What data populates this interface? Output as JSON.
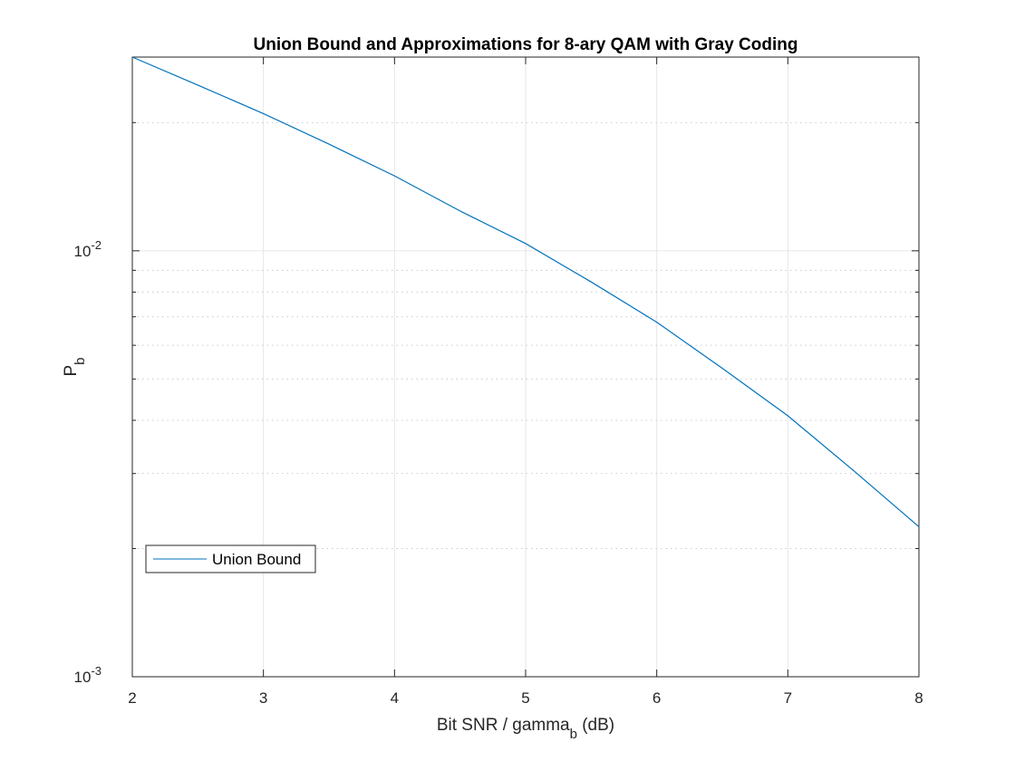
{
  "chart_data": {
    "type": "line",
    "title": "Union Bound and Approximations for 8-ary QAM with Gray Coding",
    "xlabel": "Bit SNR / gamma",
    "xlabel_subscript": "b",
    "xlabel_suffix": " (dB)",
    "ylabel": "P",
    "ylabel_subscript": "b",
    "xlim": [
      2,
      8
    ],
    "ylim": [
      0.001,
      0.0285
    ],
    "yscale": "log",
    "grid": true,
    "legend_location": "bottom-left",
    "x_ticks": [
      "2",
      "3",
      "4",
      "5",
      "6",
      "7",
      "8"
    ],
    "y_ticks": [
      {
        "base": "10",
        "exp": "-3",
        "value": 0.001
      },
      {
        "base": "10",
        "exp": "-2",
        "value": 0.01
      }
    ],
    "series": [
      {
        "name": "Union Bound",
        "color": "#0072BD",
        "x": [
          2.0,
          2.5,
          3.0,
          3.5,
          4.0,
          4.5,
          5.0,
          5.5,
          6.0,
          6.5,
          7.0,
          7.5,
          8.0
        ],
        "y": [
          0.0285,
          0.0245,
          0.021,
          0.0178,
          0.015,
          0.0124,
          0.0104,
          0.00845,
          0.0068,
          0.0053,
          0.0041,
          0.00305,
          0.00225
        ]
      }
    ]
  }
}
